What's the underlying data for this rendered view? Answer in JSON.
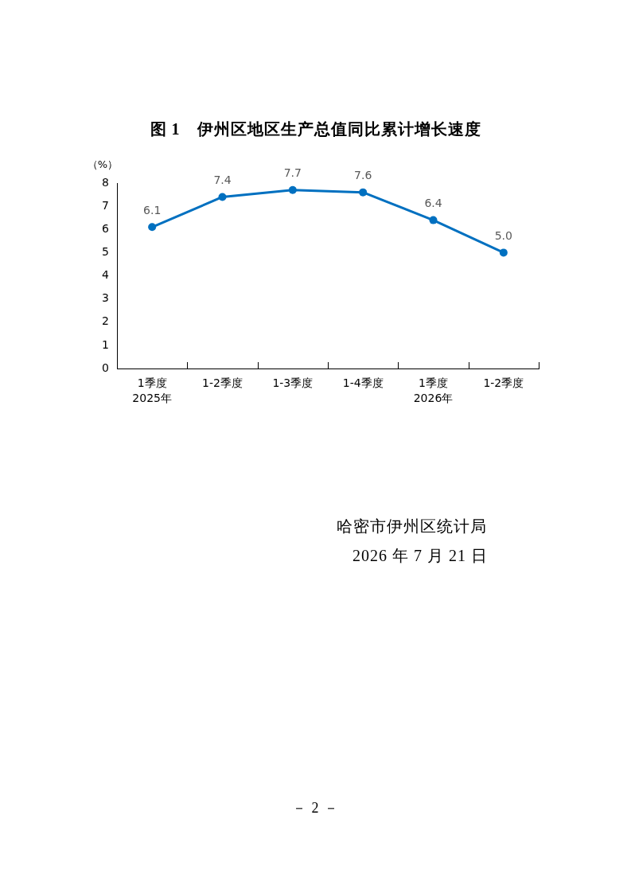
{
  "chart_data": {
    "type": "line",
    "title": "图 1　伊州区地区生产总值同比累计增长速度",
    "ylabel": "（%）",
    "categories": [
      "1季度\n2025年",
      "1-2季度",
      "1-3季度",
      "1-4季度",
      "1季度\n2026年",
      "1-2季度"
    ],
    "series": [
      {
        "color": "#0070c0",
        "values": [
          6.1,
          7.4,
          7.7,
          7.6,
          6.4,
          5.0
        ],
        "value_labels": [
          "6.1",
          "7.4",
          "7.7",
          "7.6",
          "6.4",
          "5.0"
        ]
      }
    ],
    "ylim": [
      0,
      8
    ],
    "yticks": [
      0,
      1,
      2,
      3,
      4,
      5,
      6,
      7,
      8
    ],
    "marker": "circle",
    "annotations": [
      "哈密市伊州区统计局",
      "2026 年 7 月 21 日",
      "－ 2 －"
    ]
  }
}
